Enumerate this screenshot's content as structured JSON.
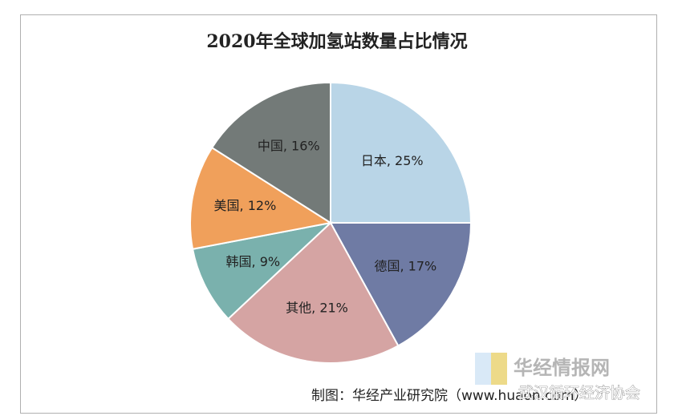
{
  "chart_data": {
    "type": "pie",
    "title": "2020年全球加氢站数量占比情况",
    "values": [
      25,
      17,
      21,
      9,
      12,
      16
    ],
    "value_labels": [
      "日本, 25%",
      "德国, 17%",
      "其他, 21%",
      "韩国, 9%",
      "美国, 12%",
      "中国, 16%"
    ],
    "colors": [
      "#b9d5e7",
      "#6f7ba4",
      "#d5a4a3",
      "#7ab1ad",
      "#f0a05b",
      "#737a78"
    ],
    "source": "制图：华经产业研究院（www.huaon.com）"
  },
  "watermarks": [
    "华经情报网",
    "武汉循环经济协会"
  ]
}
